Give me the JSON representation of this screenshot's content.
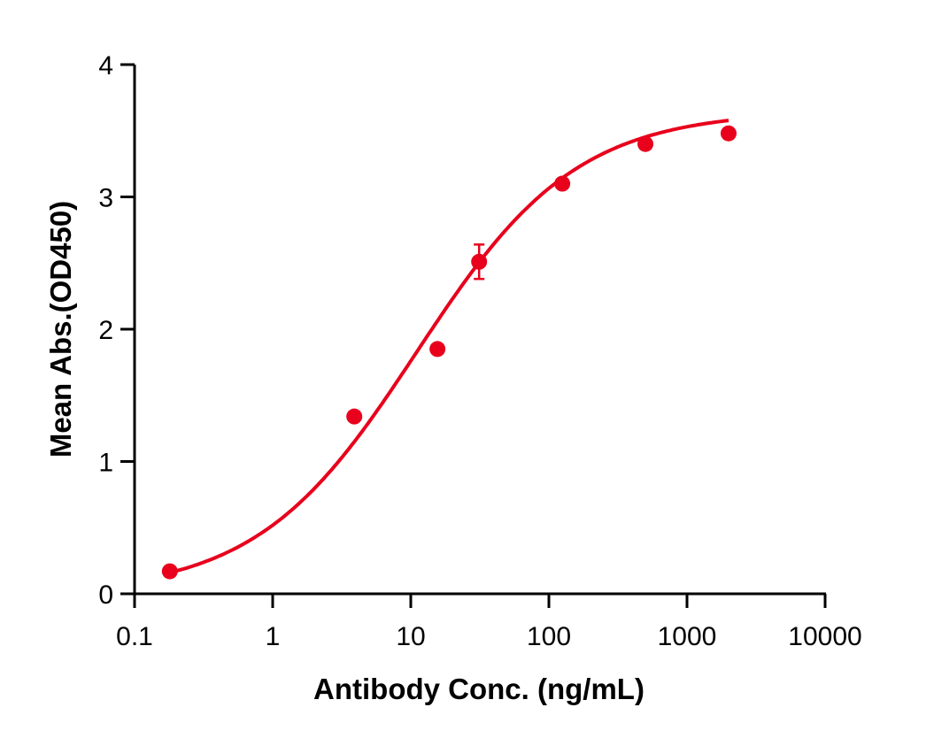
{
  "chart_data": {
    "type": "scatter",
    "title": "",
    "xlabel": "Antibody Conc. (ng/mL)",
    "ylabel": "Mean Abs.(OD450)",
    "xscale": "log",
    "xlim": [
      0.1,
      10000
    ],
    "ylim": [
      0,
      4
    ],
    "x_ticks": [
      "0.1",
      "1",
      "10",
      "100",
      "1000",
      "10000"
    ],
    "y_ticks": [
      "0",
      "1",
      "2",
      "3",
      "4"
    ],
    "grid": false,
    "legend": null,
    "color": "#e8001c",
    "series": [
      {
        "name": "Mean Abs.",
        "points": [
          {
            "x": 0.18,
            "y": 0.17
          },
          {
            "x": 3.9,
            "y": 1.34
          },
          {
            "x": 15.6,
            "y": 1.85
          },
          {
            "x": 31.25,
            "y": 2.51,
            "err": 0.13
          },
          {
            "x": 125,
            "y": 3.1
          },
          {
            "x": 500,
            "y": 3.4
          },
          {
            "x": 2000,
            "y": 3.48
          }
        ],
        "fit": {
          "type": "4PL sigmoid",
          "bottom": 0.0,
          "top": 3.65,
          "ec50": 11,
          "hill": 0.75
        }
      }
    ]
  }
}
